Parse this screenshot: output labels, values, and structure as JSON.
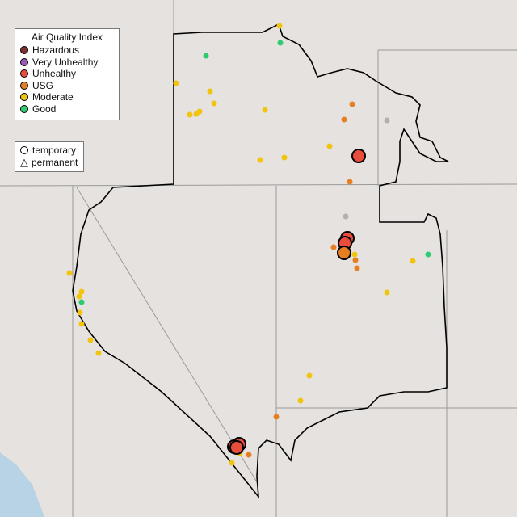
{
  "legend": {
    "title": "Air Quality Index",
    "items": [
      {
        "label": "Hazardous",
        "color": "#7e2f2f"
      },
      {
        "label": "Very Unhealthy",
        "color": "#9b59b6"
      },
      {
        "label": "Unhealthy",
        "color": "#e74c3c"
      },
      {
        "label": "USG",
        "color": "#e67e22"
      },
      {
        "label": "Moderate",
        "color": "#f1c40f"
      },
      {
        "label": "Good",
        "color": "#2ecc71"
      }
    ]
  },
  "shape_legend": {
    "temporary": "temporary",
    "permanent": "permanent"
  },
  "colors": {
    "no_data": "#b0b0b0",
    "outline": "#000000",
    "state_lines": "#9a9a9a",
    "water": "#b9d3e6"
  }
}
